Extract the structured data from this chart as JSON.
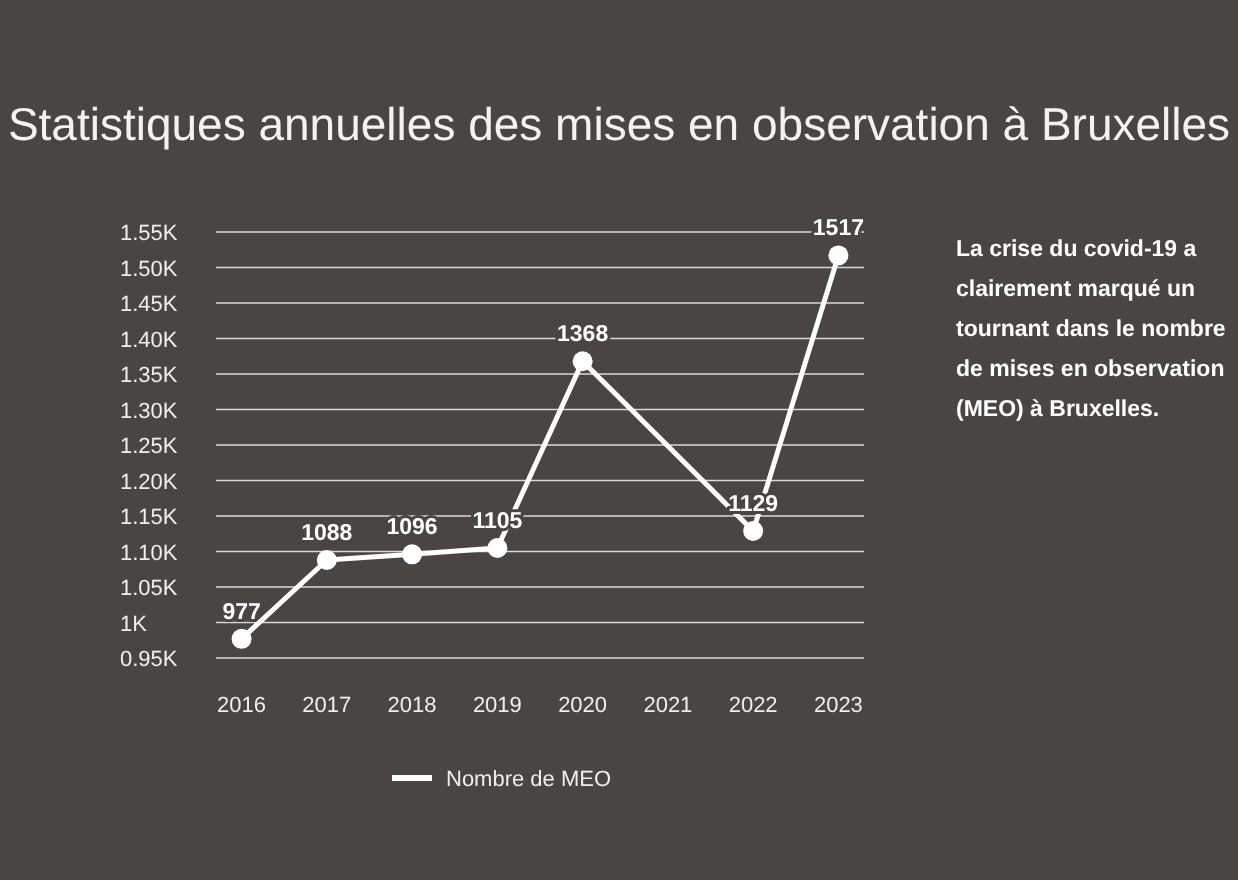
{
  "chart_data": {
    "type": "line",
    "title": "Statistiques annuelles des mises en observation à Bruxelles",
    "x": [
      2016,
      2017,
      2018,
      2019,
      2020,
      2022,
      2023
    ],
    "series": [
      {
        "name": "Nombre de MEO",
        "color": "#ffffff",
        "values": [
          977,
          1088,
          1096,
          1105,
          1368,
          1129,
          1517
        ]
      }
    ],
    "xlim": [
      2015.7,
      2023.3
    ],
    "xticks": [
      2016,
      2017,
      2018,
      2019,
      2020,
      2021,
      2022,
      2023
    ],
    "ylim": [
      950,
      1550
    ],
    "yticks": [
      {
        "value": 950,
        "label": "0.95K"
      },
      {
        "value": 1000,
        "label": "1K"
      },
      {
        "value": 1050,
        "label": "1.05K"
      },
      {
        "value": 1100,
        "label": "1.10K"
      },
      {
        "value": 1150,
        "label": "1.15K"
      },
      {
        "value": 1200,
        "label": "1.20K"
      },
      {
        "value": 1250,
        "label": "1.25K"
      },
      {
        "value": 1300,
        "label": "1.30K"
      },
      {
        "value": 1350,
        "label": "1.35K"
      },
      {
        "value": 1400,
        "label": "1.40K"
      },
      {
        "value": 1450,
        "label": "1.45K"
      },
      {
        "value": 1500,
        "label": "1.50K"
      },
      {
        "value": 1550,
        "label": "1.55K"
      }
    ],
    "grid": "y",
    "legend": "bottom",
    "marker": "circle",
    "line_style": "solid",
    "data_labels": true,
    "annotations": [
      "La crise du covid-19 a clairement marqué un tournant dans le nombre de mises en observation (MEO) à Bruxelles."
    ]
  }
}
